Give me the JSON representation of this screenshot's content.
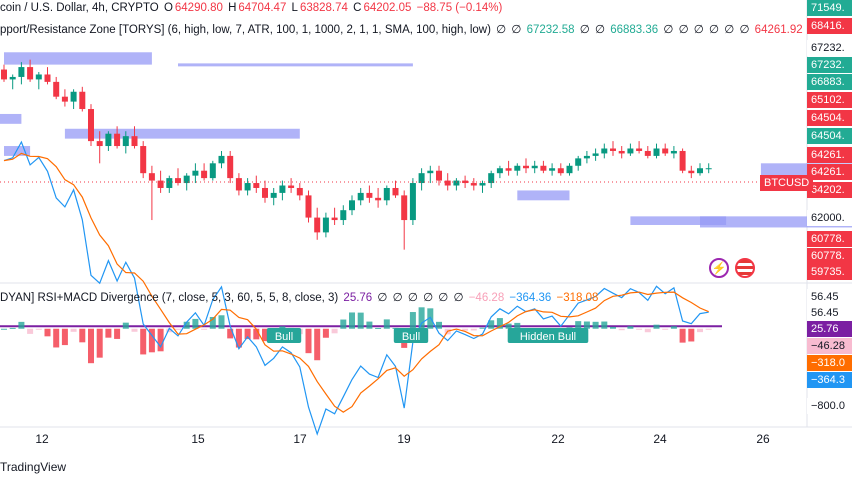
{
  "header": {
    "symbol": "coin / U.S. Dollar, 4h, CRYPTO",
    "open_label": "O",
    "open": "64290.80",
    "high_label": "H",
    "high": "64704.47",
    "low_label": "L",
    "low": "63828.74",
    "close_label": "C",
    "close": "64202.05",
    "change": "−88.75 (−0.14%)"
  },
  "indicator1": {
    "name": "pport/Resistance Zone [TORYS] (6, high, low, 7, ATR, 100, 1, 1000, 2, 1, 1, SMA, 100, high, low)",
    "values": [
      "∅",
      "∅",
      "67232.58",
      "∅",
      "∅",
      "66883.36",
      "∅",
      "∅",
      "∅",
      "∅",
      "∅",
      "∅",
      "64261.92",
      "∅",
      "∅"
    ]
  },
  "indicator2": {
    "name": "DYAN] RSI+MACD Divergence (7, close, 5, 3, 60, 5, 5, 8, close, 3)",
    "values": [
      "25.76",
      "∅",
      "∅",
      "∅",
      "∅",
      "∅",
      "∅",
      "−46.28",
      "−364.36",
      "−318.08"
    ]
  },
  "price_axis": [
    {
      "text": "71549.",
      "bg": "#22ab94"
    },
    {
      "text": "68416.",
      "bg": "#f23645"
    },
    {
      "text": "67232.",
      "bg": "#ffffff"
    },
    {
      "text": "67232.",
      "bg": "#22ab94"
    },
    {
      "text": "66883.",
      "bg": "#22ab94"
    },
    {
      "text": "65102.",
      "bg": "#f23645"
    },
    {
      "text": "64504.",
      "bg": "#f23645"
    },
    {
      "text": "64504.",
      "bg": "#22ab94"
    },
    {
      "text": "64261.",
      "bg": "#f23645"
    },
    {
      "text": "64261.",
      "bg": "#f23645"
    },
    {
      "text": "64202.",
      "bg": "#f23645"
    },
    {
      "text": "62000.",
      "bg": "#ffffff"
    },
    {
      "text": "60778.",
      "bg": "#f23645"
    },
    {
      "text": "60778.",
      "bg": "#f23645"
    },
    {
      "text": "59735.",
      "bg": "#f23645"
    }
  ],
  "symbol_tag": "BTCUSD",
  "osc_axis": [
    {
      "text": "56.45",
      "bg": "#ffffff"
    },
    {
      "text": "56.45",
      "bg": "#ffffff"
    },
    {
      "text": "25.76",
      "bg": "#7b1fa2"
    },
    {
      "text": "−46.28",
      "bg": "#f8bbd0"
    },
    {
      "text": "−318.0",
      "bg": "#ff6d00"
    },
    {
      "text": "−364.3",
      "bg": "#2196f3"
    },
    {
      "text": "−800.0",
      "bg": "#ffffff"
    }
  ],
  "x_axis": [
    "12",
    "15",
    "17",
    "19",
    "22",
    "24",
    "26"
  ],
  "osc_labels": [
    "Bull",
    "Bull",
    "Hidden Bull"
  ],
  "footer": "TradingView",
  "colors": {
    "up": "#089981",
    "down": "#f23645",
    "zone": "#9599f5",
    "macd": "#2196f3",
    "signal": "#ff6d00",
    "rsi": "#7b1fa2"
  },
  "chart_data": {
    "type": "candlestick",
    "symbol": "BTCUSD",
    "timeframe": "4h",
    "x_ticks": [
      "12",
      "15",
      "17",
      "19",
      "22",
      "24",
      "26"
    ],
    "candles": [
      {
        "o": 68100,
        "h": 68300,
        "l": 67600,
        "c": 67700
      },
      {
        "o": 67700,
        "h": 67900,
        "l": 67300,
        "c": 67800
      },
      {
        "o": 67800,
        "h": 68400,
        "l": 67500,
        "c": 68200
      },
      {
        "o": 68200,
        "h": 68500,
        "l": 67600,
        "c": 67700
      },
      {
        "o": 67700,
        "h": 68000,
        "l": 67300,
        "c": 67900
      },
      {
        "o": 67900,
        "h": 68200,
        "l": 67500,
        "c": 67600
      },
      {
        "o": 67600,
        "h": 67800,
        "l": 66900,
        "c": 67000
      },
      {
        "o": 67000,
        "h": 67300,
        "l": 66600,
        "c": 66800
      },
      {
        "o": 66800,
        "h": 67300,
        "l": 66500,
        "c": 67200
      },
      {
        "o": 67200,
        "h": 67400,
        "l": 66400,
        "c": 66500
      },
      {
        "o": 66500,
        "h": 66700,
        "l": 65000,
        "c": 65200
      },
      {
        "o": 65200,
        "h": 65600,
        "l": 64300,
        "c": 65000
      },
      {
        "o": 65000,
        "h": 65600,
        "l": 64800,
        "c": 65500
      },
      {
        "o": 65500,
        "h": 65800,
        "l": 64900,
        "c": 65000
      },
      {
        "o": 65000,
        "h": 65600,
        "l": 64700,
        "c": 65400
      },
      {
        "o": 65400,
        "h": 65800,
        "l": 64900,
        "c": 65000
      },
      {
        "o": 65000,
        "h": 65200,
        "l": 63700,
        "c": 63900
      },
      {
        "o": 63900,
        "h": 64200,
        "l": 62000,
        "c": 63600
      },
      {
        "o": 63600,
        "h": 64000,
        "l": 63100,
        "c": 63300
      },
      {
        "o": 63300,
        "h": 63800,
        "l": 63100,
        "c": 63700
      },
      {
        "o": 63700,
        "h": 64100,
        "l": 63400,
        "c": 63500
      },
      {
        "o": 63500,
        "h": 63900,
        "l": 63200,
        "c": 63800
      },
      {
        "o": 63800,
        "h": 64300,
        "l": 63500,
        "c": 64000
      },
      {
        "o": 64000,
        "h": 64300,
        "l": 63600,
        "c": 63700
      },
      {
        "o": 63700,
        "h": 64400,
        "l": 63600,
        "c": 64300
      },
      {
        "o": 64300,
        "h": 64800,
        "l": 64100,
        "c": 64600
      },
      {
        "o": 64600,
        "h": 64800,
        "l": 63500,
        "c": 63700
      },
      {
        "o": 63700,
        "h": 63900,
        "l": 63000,
        "c": 63200
      },
      {
        "o": 63200,
        "h": 63700,
        "l": 63000,
        "c": 63500
      },
      {
        "o": 63500,
        "h": 63800,
        "l": 63100,
        "c": 63300
      },
      {
        "o": 63300,
        "h": 63600,
        "l": 62700,
        "c": 62900
      },
      {
        "o": 62900,
        "h": 63300,
        "l": 62600,
        "c": 63100
      },
      {
        "o": 63100,
        "h": 63600,
        "l": 62800,
        "c": 63400
      },
      {
        "o": 63400,
        "h": 63700,
        "l": 63100,
        "c": 63300
      },
      {
        "o": 63300,
        "h": 63500,
        "l": 62800,
        "c": 63000
      },
      {
        "o": 63000,
        "h": 63200,
        "l": 61900,
        "c": 62100
      },
      {
        "o": 62100,
        "h": 62500,
        "l": 61200,
        "c": 61500
      },
      {
        "o": 61500,
        "h": 62300,
        "l": 61300,
        "c": 62100
      },
      {
        "o": 62100,
        "h": 62500,
        "l": 61800,
        "c": 62000
      },
      {
        "o": 62000,
        "h": 62600,
        "l": 61800,
        "c": 62400
      },
      {
        "o": 62400,
        "h": 63000,
        "l": 62200,
        "c": 62800
      },
      {
        "o": 62800,
        "h": 63300,
        "l": 62600,
        "c": 63100
      },
      {
        "o": 63100,
        "h": 63400,
        "l": 62700,
        "c": 62900
      },
      {
        "o": 62900,
        "h": 63300,
        "l": 62500,
        "c": 62800
      },
      {
        "o": 62800,
        "h": 63400,
        "l": 62600,
        "c": 63300
      },
      {
        "o": 63300,
        "h": 63600,
        "l": 62900,
        "c": 63000
      },
      {
        "o": 63000,
        "h": 63200,
        "l": 60800,
        "c": 62000
      },
      {
        "o": 62000,
        "h": 63700,
        "l": 61800,
        "c": 63500
      },
      {
        "o": 63500,
        "h": 64100,
        "l": 63200,
        "c": 63900
      },
      {
        "o": 63900,
        "h": 64200,
        "l": 63500,
        "c": 64000
      },
      {
        "o": 64000,
        "h": 64200,
        "l": 63400,
        "c": 63600
      },
      {
        "o": 63600,
        "h": 63900,
        "l": 63200,
        "c": 63400
      },
      {
        "o": 63400,
        "h": 63700,
        "l": 63200,
        "c": 63600
      },
      {
        "o": 63600,
        "h": 63800,
        "l": 63300,
        "c": 63500
      },
      {
        "o": 63500,
        "h": 63700,
        "l": 63200,
        "c": 63400
      },
      {
        "o": 63400,
        "h": 63600,
        "l": 63100,
        "c": 63500
      },
      {
        "o": 63500,
        "h": 64000,
        "l": 63300,
        "c": 63900
      },
      {
        "o": 63900,
        "h": 64200,
        "l": 63700,
        "c": 64100
      },
      {
        "o": 64100,
        "h": 64400,
        "l": 63800,
        "c": 64000
      },
      {
        "o": 64000,
        "h": 64300,
        "l": 63800,
        "c": 64200
      },
      {
        "o": 64200,
        "h": 64500,
        "l": 63900,
        "c": 64100
      },
      {
        "o": 64100,
        "h": 64400,
        "l": 63900,
        "c": 64200
      },
      {
        "o": 64200,
        "h": 64400,
        "l": 63900,
        "c": 64000
      },
      {
        "o": 64000,
        "h": 64300,
        "l": 63800,
        "c": 64100
      },
      {
        "o": 64100,
        "h": 64300,
        "l": 63800,
        "c": 63900
      },
      {
        "o": 63900,
        "h": 64300,
        "l": 63800,
        "c": 64200
      },
      {
        "o": 64200,
        "h": 64600,
        "l": 64000,
        "c": 64500
      },
      {
        "o": 64500,
        "h": 64800,
        "l": 64300,
        "c": 64600
      },
      {
        "o": 64600,
        "h": 64900,
        "l": 64400,
        "c": 64700
      },
      {
        "o": 64700,
        "h": 65100,
        "l": 64500,
        "c": 64900
      },
      {
        "o": 64900,
        "h": 65200,
        "l": 64600,
        "c": 64800
      },
      {
        "o": 64800,
        "h": 65000,
        "l": 64500,
        "c": 64700
      },
      {
        "o": 64700,
        "h": 65100,
        "l": 64600,
        "c": 64900
      },
      {
        "o": 64900,
        "h": 65200,
        "l": 64700,
        "c": 64800
      },
      {
        "o": 64800,
        "h": 65000,
        "l": 64500,
        "c": 64600
      },
      {
        "o": 64600,
        "h": 65100,
        "l": 64500,
        "c": 64900
      },
      {
        "o": 64900,
        "h": 65100,
        "l": 64600,
        "c": 64700
      },
      {
        "o": 64700,
        "h": 65000,
        "l": 64500,
        "c": 64800
      },
      {
        "o": 64800,
        "h": 64900,
        "l": 63900,
        "c": 64000
      },
      {
        "o": 64000,
        "h": 64200,
        "l": 63700,
        "c": 63900
      },
      {
        "o": 63900,
        "h": 64300,
        "l": 63800,
        "c": 64100
      },
      {
        "o": 64100,
        "h": 64300,
        "l": 63900,
        "c": 64100
      }
    ],
    "zones": [
      {
        "x0": 0,
        "x1": 17,
        "y0": 68800,
        "y1": 68300
      },
      {
        "x0": 20,
        "x1": 47,
        "y0": 68350,
        "y1": 68250
      },
      {
        "x0": 7,
        "x1": 34,
        "y0": 65700,
        "y1": 65300
      },
      {
        "x0": 0,
        "x1": 3,
        "y0": 65000,
        "y1": 64600
      },
      {
        "x0": -1,
        "x1": 2,
        "y0": 66300,
        "y1": 65900
      },
      {
        "x0": 59,
        "x1": 65,
        "y0": 63200,
        "y1": 62800
      },
      {
        "x0": 72,
        "x1": 83,
        "y0": 62150,
        "y1": 61800
      },
      {
        "x0": 80,
        "x1": 102,
        "y0": 62150,
        "y1": 61700
      },
      {
        "x0": 87,
        "x1": 130,
        "y0": 64300,
        "y1": 63800
      },
      {
        "x0": 107,
        "x1": 129,
        "y0": 63900,
        "y1": 63500
      },
      {
        "x0": 119,
        "x1": 130,
        "y0": 64800,
        "y1": 64700
      }
    ],
    "rsi_line": 25.76,
    "macd_values": [
      -46.28,
      -364.36,
      -318.08
    ]
  }
}
